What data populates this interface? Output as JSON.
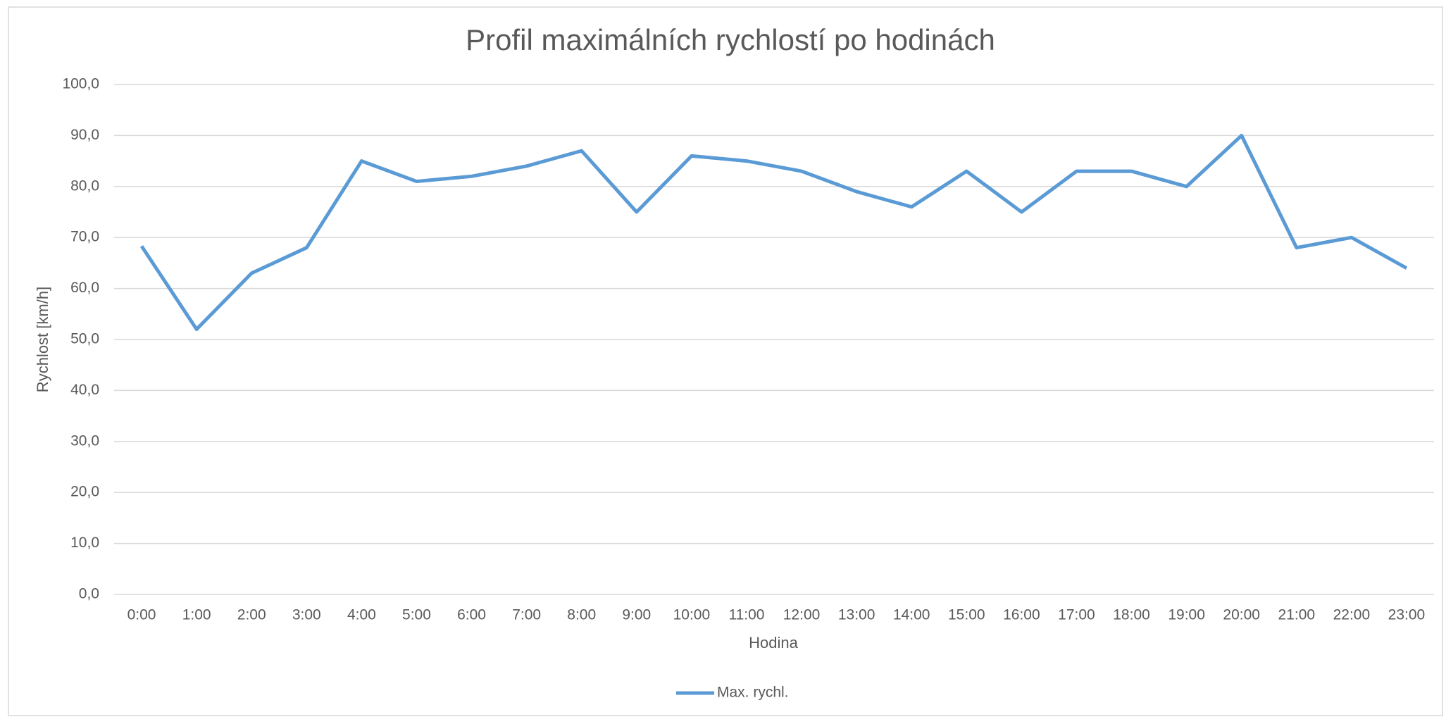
{
  "chart_data": {
    "type": "line",
    "title": "Profil maximálních rychlostí po hodinách",
    "x_label": "Hodina",
    "y_label": "Rychlost [km/h]",
    "categories": [
      "0:00",
      "1:00",
      "2:00",
      "3:00",
      "4:00",
      "5:00",
      "6:00",
      "7:00",
      "8:00",
      "9:00",
      "10:00",
      "11:00",
      "12:00",
      "13:00",
      "14:00",
      "15:00",
      "16:00",
      "17:00",
      "18:00",
      "19:00",
      "20:00",
      "21:00",
      "22:00",
      "23:00"
    ],
    "series": [
      {
        "name": "Max. rychl.",
        "color": "#5b9bd5",
        "values": [
          68.3,
          52,
          63,
          68,
          85,
          81,
          82,
          84,
          87,
          75,
          86,
          85,
          83,
          79,
          76,
          83,
          75,
          83,
          83,
          80,
          90,
          68,
          70,
          64
        ]
      }
    ],
    "ylim": [
      0,
      100
    ],
    "yticks": [
      {
        "value": 0,
        "label": "0,0"
      },
      {
        "value": 10,
        "label": "10,0"
      },
      {
        "value": 20,
        "label": "20,0"
      },
      {
        "value": 30,
        "label": "30,0"
      },
      {
        "value": 40,
        "label": "40,0"
      },
      {
        "value": 50,
        "label": "50,0"
      },
      {
        "value": 60,
        "label": "60,0"
      },
      {
        "value": 70,
        "label": "70,0"
      },
      {
        "value": 80,
        "label": "80,0"
      },
      {
        "value": 90,
        "label": "90,0"
      },
      {
        "value": 100,
        "label": "100,0"
      }
    ],
    "grid": true,
    "legend": "bottom"
  }
}
